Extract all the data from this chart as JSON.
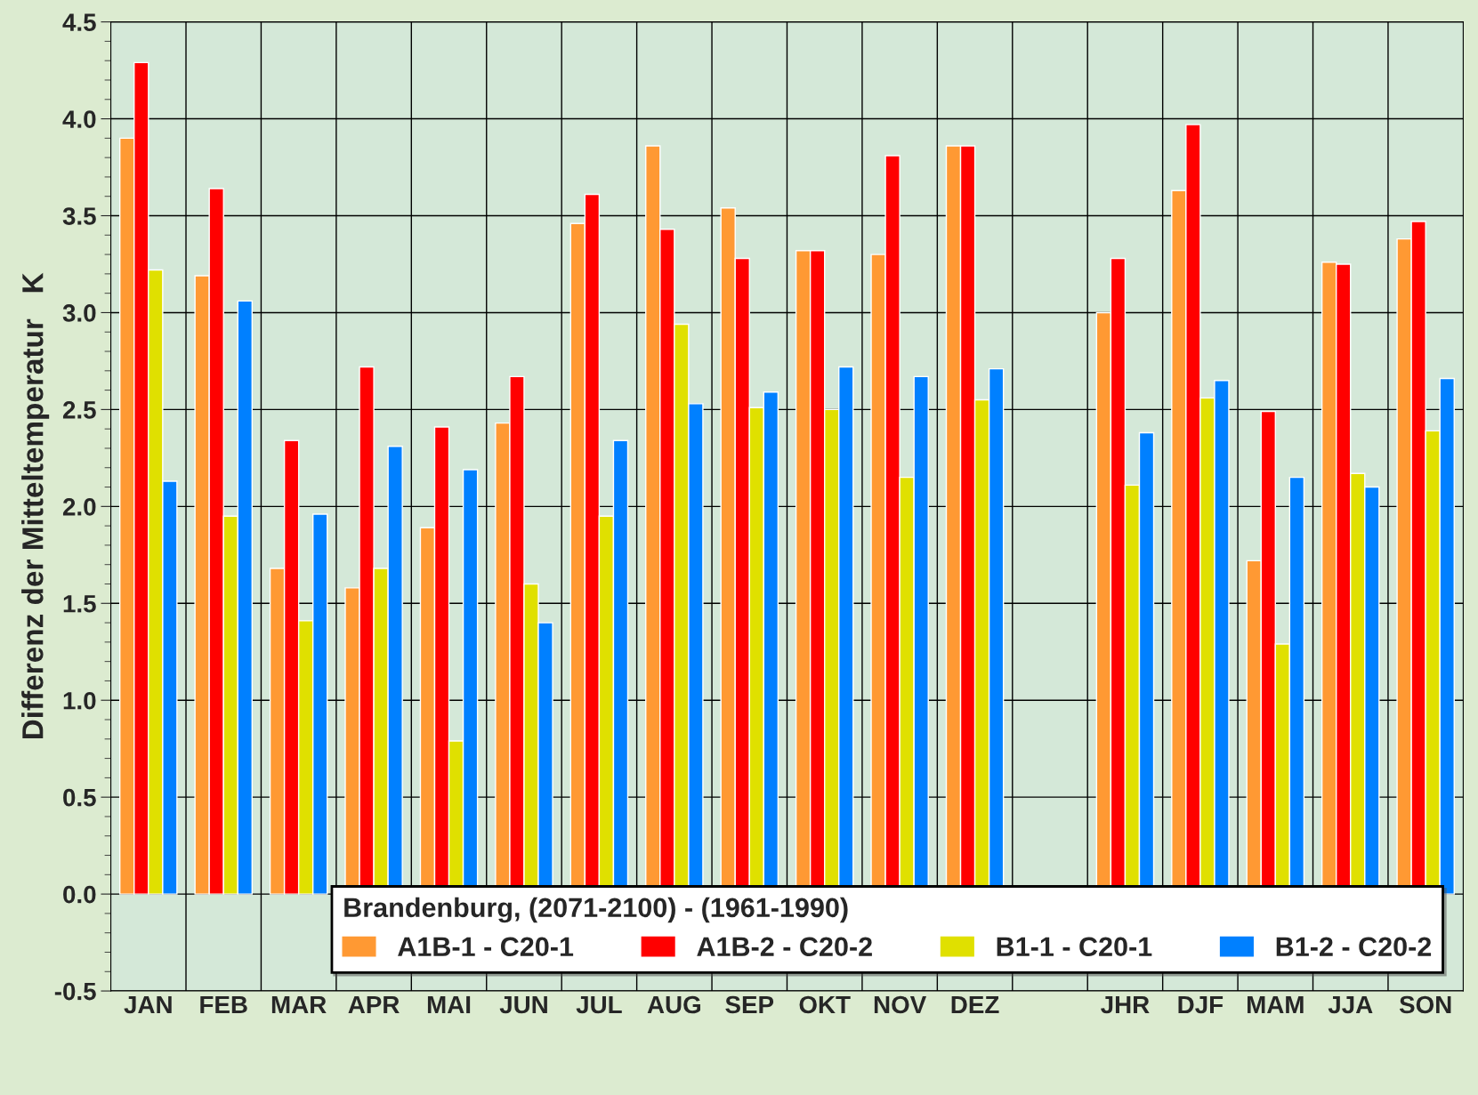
{
  "chart_data": {
    "type": "bar",
    "ylabel": "Differenz der Mitteltemperatur   K",
    "legend_title": "Brandenburg, (2071-2100) - (1961-1990)",
    "categories": [
      "JAN",
      "FEB",
      "MAR",
      "APR",
      "MAI",
      "JUN",
      "JUL",
      "AUG",
      "SEP",
      "OKT",
      "NOV",
      "DEZ",
      null,
      "JHR",
      "DJF",
      "MAM",
      "JJA",
      "SON"
    ],
    "series": [
      {
        "name": "A1B-1 - C20-1",
        "color": "#ff9933",
        "values": [
          3.9,
          3.19,
          1.68,
          1.58,
          1.89,
          2.43,
          3.46,
          3.86,
          3.54,
          3.32,
          3.3,
          3.86,
          null,
          3.0,
          3.63,
          1.72,
          3.26,
          3.38
        ]
      },
      {
        "name": "A1B-2 - C20-2",
        "color": "#ff0000",
        "values": [
          4.29,
          3.64,
          2.34,
          2.72,
          2.41,
          2.67,
          3.61,
          3.43,
          3.28,
          3.32,
          3.81,
          3.86,
          null,
          3.28,
          3.97,
          2.49,
          3.25,
          3.47
        ]
      },
      {
        "name": "B1-1 - C20-1",
        "color": "#e0e000",
        "values": [
          3.22,
          1.95,
          1.41,
          1.68,
          0.79,
          1.6,
          1.95,
          2.94,
          2.51,
          2.5,
          2.15,
          2.55,
          null,
          2.11,
          2.56,
          1.29,
          2.17,
          2.39
        ]
      },
      {
        "name": "B1-2 - C20-2",
        "color": "#0080ff",
        "values": [
          2.13,
          3.06,
          1.96,
          2.31,
          2.19,
          1.4,
          2.34,
          2.53,
          2.59,
          2.72,
          2.67,
          2.71,
          null,
          2.38,
          2.65,
          2.15,
          2.1,
          2.66
        ]
      }
    ],
    "ylim": [
      -0.5,
      4.5
    ],
    "yticks": [
      {
        "value": -0.5,
        "label": "-0.5"
      },
      {
        "value": 0,
        "label": "0.0"
      },
      {
        "value": 0.5,
        "label": "0.5"
      },
      {
        "value": 1,
        "label": "1.0"
      },
      {
        "value": 1.5,
        "label": "1.5"
      },
      {
        "value": 2,
        "label": "2.0"
      },
      {
        "value": 2.5,
        "label": "2.5"
      },
      {
        "value": 3,
        "label": "3.0"
      },
      {
        "value": 3.5,
        "label": "3.5"
      },
      {
        "value": 4,
        "label": "4.0"
      },
      {
        "value": 4.5,
        "label": "4.5"
      }
    ],
    "grid": true,
    "legend": "bottom right"
  }
}
